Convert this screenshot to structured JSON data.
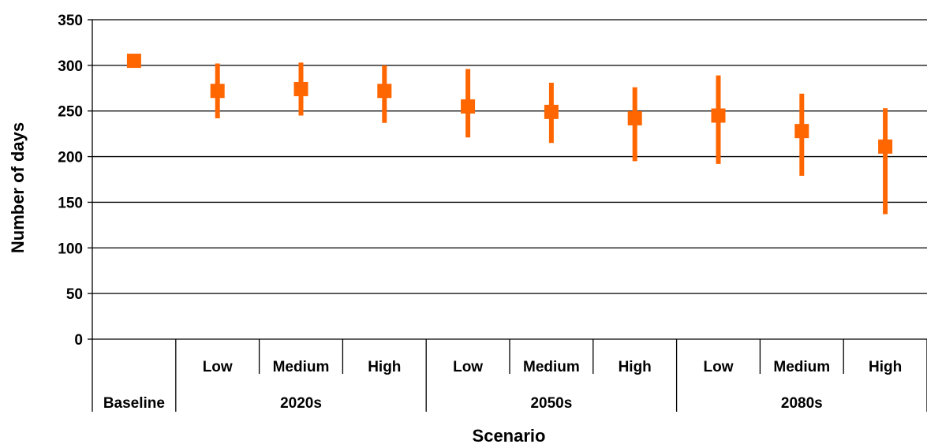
{
  "chart_data": {
    "type": "scatter",
    "title": "",
    "xlabel": "Scenario",
    "ylabel": "Number of days",
    "ylim": [
      0,
      350
    ],
    "yticks": [
      0,
      50,
      100,
      150,
      200,
      250,
      300,
      350
    ],
    "grid": true,
    "legend": "none",
    "groups": [
      {
        "label": "Baseline",
        "categories": [
          ""
        ]
      },
      {
        "label": "2020s",
        "categories": [
          "Low",
          "Medium",
          "High"
        ]
      },
      {
        "label": "2050s",
        "categories": [
          "Low",
          "Medium",
          "High"
        ]
      },
      {
        "label": "2080s",
        "categories": [
          "Low",
          "Medium",
          "High"
        ]
      }
    ],
    "series": [
      {
        "color": "#ff6600",
        "points": [
          {
            "group": "Baseline",
            "scenario": "",
            "value": 305,
            "low": null,
            "high": null
          },
          {
            "group": "2020s",
            "scenario": "Low",
            "value": 272,
            "low": 242,
            "high": 302
          },
          {
            "group": "2020s",
            "scenario": "Medium",
            "value": 274,
            "low": 245,
            "high": 303
          },
          {
            "group": "2020s",
            "scenario": "High",
            "value": 272,
            "low": 237,
            "high": 300
          },
          {
            "group": "2050s",
            "scenario": "Low",
            "value": 255,
            "low": 221,
            "high": 296
          },
          {
            "group": "2050s",
            "scenario": "Medium",
            "value": 249,
            "low": 215,
            "high": 281
          },
          {
            "group": "2050s",
            "scenario": "High",
            "value": 242,
            "low": 195,
            "high": 276
          },
          {
            "group": "2080s",
            "scenario": "Low",
            "value": 245,
            "low": 192,
            "high": 289
          },
          {
            "group": "2080s",
            "scenario": "Medium",
            "value": 228,
            "low": 179,
            "high": 269
          },
          {
            "group": "2080s",
            "scenario": "High",
            "value": 211,
            "low": 137,
            "high": 253
          }
        ]
      }
    ]
  }
}
